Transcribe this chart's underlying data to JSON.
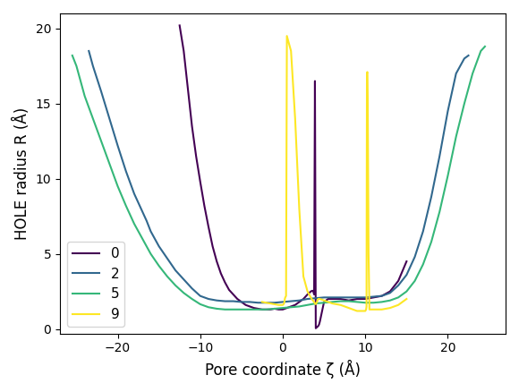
{
  "title": "",
  "xlabel": "Pore coordinate ζ (Å)",
  "ylabel": "HOLE radius R (Å)",
  "xlim": [
    -27,
    27
  ],
  "ylim": [
    -0.3,
    21
  ],
  "legend_labels": [
    "0",
    "2",
    "5",
    "9"
  ],
  "colors": [
    "#440154",
    "#31688e",
    "#35b779",
    "#fde725"
  ],
  "series": {
    "0": {
      "z": [
        -12.5,
        -12,
        -11.5,
        -11,
        -10.5,
        -10,
        -9.5,
        -9,
        -8.5,
        -8,
        -7.5,
        -7,
        -6.5,
        -6,
        -5.5,
        -5,
        -4.5,
        -4,
        -3.5,
        -3,
        -2.5,
        -2,
        -1.5,
        -1,
        -0.5,
        0,
        0.5,
        1,
        1.5,
        2,
        2.5,
        3,
        3.2,
        3.4,
        3.6,
        3.7,
        3.8,
        3.9,
        4.0,
        4.1,
        4.2,
        4.3,
        4.4,
        4.5,
        5,
        5.5,
        6,
        7,
        8,
        9,
        10,
        11,
        12,
        13,
        14,
        15
      ],
      "r": [
        20.2,
        18.5,
        16.0,
        13.5,
        11.5,
        9.8,
        8.2,
        6.8,
        5.5,
        4.5,
        3.7,
        3.1,
        2.6,
        2.3,
        2.0,
        1.8,
        1.6,
        1.5,
        1.4,
        1.35,
        1.3,
        1.3,
        1.3,
        1.35,
        1.3,
        1.3,
        1.4,
        1.5,
        1.6,
        1.8,
        2.0,
        2.3,
        2.4,
        2.5,
        2.55,
        2.5,
        2.3,
        16.5,
        0.05,
        0.1,
        0.15,
        0.2,
        0.3,
        0.5,
        1.8,
        2.0,
        2.0,
        2.0,
        1.9,
        2.0,
        2.0,
        2.1,
        2.2,
        2.5,
        3.2,
        4.5
      ]
    },
    "2": {
      "z": [
        -23.5,
        -23,
        -22,
        -21,
        -20,
        -19,
        -18,
        -17,
        -16.5,
        -16,
        -15,
        -14,
        -13,
        -12,
        -11,
        -10,
        -9,
        -8,
        -7,
        -6,
        -5,
        -4,
        -3,
        -2,
        -1,
        0,
        1,
        2,
        3,
        4,
        5,
        6,
        7,
        8,
        9,
        10,
        11,
        12,
        13,
        14,
        15,
        16,
        17,
        18,
        19,
        20,
        21,
        22,
        22.5
      ],
      "r": [
        18.5,
        17.5,
        15.8,
        14.0,
        12.2,
        10.5,
        9.0,
        7.8,
        7.2,
        6.5,
        5.5,
        4.7,
        3.9,
        3.3,
        2.7,
        2.2,
        2.0,
        1.9,
        1.85,
        1.85,
        1.8,
        1.8,
        1.75,
        1.75,
        1.75,
        1.8,
        1.85,
        1.9,
        2.0,
        2.05,
        2.1,
        2.1,
        2.1,
        2.1,
        2.1,
        2.1,
        2.15,
        2.2,
        2.4,
        2.9,
        3.6,
        4.8,
        6.5,
        8.8,
        11.5,
        14.5,
        17.0,
        18.0,
        18.2
      ]
    },
    "5": {
      "z": [
        -25.5,
        -25,
        -24.5,
        -24,
        -23,
        -22,
        -21,
        -20,
        -19,
        -18,
        -17,
        -16,
        -15,
        -14,
        -13,
        -12,
        -11,
        -10,
        -9,
        -8,
        -7,
        -6,
        -5,
        -4,
        -3,
        -2,
        -1,
        0,
        1,
        2,
        3,
        4,
        5,
        6,
        7,
        8,
        9,
        10,
        11,
        12,
        13,
        14,
        15,
        16,
        17,
        18,
        19,
        20,
        21,
        22,
        23,
        24,
        24.5
      ],
      "r": [
        18.2,
        17.5,
        16.5,
        15.5,
        14.0,
        12.5,
        11.0,
        9.5,
        8.2,
        7.0,
        6.0,
        5.0,
        4.2,
        3.5,
        2.9,
        2.4,
        2.0,
        1.65,
        1.45,
        1.35,
        1.3,
        1.3,
        1.3,
        1.3,
        1.3,
        1.3,
        1.35,
        1.4,
        1.45,
        1.5,
        1.6,
        1.7,
        1.75,
        1.8,
        1.85,
        1.85,
        1.8,
        1.75,
        1.75,
        1.8,
        1.9,
        2.1,
        2.5,
        3.2,
        4.3,
        5.8,
        7.8,
        10.2,
        12.8,
        15.0,
        17.0,
        18.5,
        18.8
      ]
    },
    "9": {
      "z": [
        -2.5,
        -2,
        -1.5,
        -1,
        -0.5,
        0,
        0.1,
        0.15,
        0.2,
        0.25,
        0.3,
        0.4,
        0.5,
        1,
        1.5,
        2,
        2.5,
        3,
        3.5,
        3.8,
        3.9,
        4.0,
        4.05,
        4.1,
        4.15,
        4.2,
        4.3,
        4.5,
        5,
        5.5,
        6,
        7,
        8,
        9,
        10,
        10.1,
        10.15,
        10.2,
        10.25,
        10.3,
        10.35,
        10.4,
        10.5,
        11,
        12,
        13,
        14,
        15
      ],
      "r": [
        1.8,
        1.75,
        1.7,
        1.65,
        1.6,
        1.6,
        1.65,
        1.7,
        1.8,
        2.0,
        2.1,
        2.2,
        19.5,
        18.5,
        14.0,
        8.0,
        3.5,
        2.5,
        2.0,
        1.8,
        1.7,
        1.65,
        1.7,
        1.75,
        1.8,
        1.9,
        2.0,
        2.0,
        1.9,
        1.8,
        1.7,
        1.6,
        1.4,
        1.2,
        1.2,
        1.3,
        1.5,
        17.0,
        17.1,
        15.0,
        10.0,
        5.0,
        1.3,
        1.3,
        1.3,
        1.4,
        1.6,
        2.0
      ]
    }
  }
}
